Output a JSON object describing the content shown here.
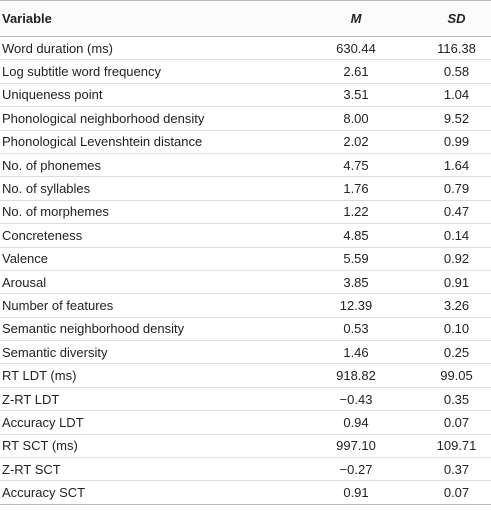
{
  "table": {
    "columns": [
      "Variable",
      "M",
      "SD"
    ],
    "rows": [
      [
        "Word duration (ms)",
        "630.44",
        "116.38"
      ],
      [
        "Log subtitle word frequency",
        "2.61",
        "0.58"
      ],
      [
        "Uniqueness point",
        "3.51",
        "1.04"
      ],
      [
        "Phonological neighborhood density",
        "8.00",
        "9.52"
      ],
      [
        "Phonological Levenshtein distance",
        "2.02",
        "0.99"
      ],
      [
        "No. of phonemes",
        "4.75",
        "1.64"
      ],
      [
        "No. of syllables",
        "1.76",
        "0.79"
      ],
      [
        "No. of morphemes",
        "1.22",
        "0.47"
      ],
      [
        "Concreteness",
        "4.85",
        "0.14"
      ],
      [
        "Valence",
        "5.59",
        "0.92"
      ],
      [
        "Arousal",
        "3.85",
        "0.91"
      ],
      [
        "Number of features",
        "12.39",
        "3.26"
      ],
      [
        "Semantic neighborhood density",
        "0.53",
        "0.10"
      ],
      [
        "Semantic diversity",
        "1.46",
        "0.25"
      ],
      [
        "RT LDT (ms)",
        "918.82",
        "99.05"
      ],
      [
        "Z-RT LDT",
        "−0.43",
        "0.35"
      ],
      [
        "Accuracy LDT",
        "0.94",
        "0.07"
      ],
      [
        "RT SCT (ms)",
        "997.10",
        "109.71"
      ],
      [
        "Z-RT SCT",
        "−0.27",
        "0.37"
      ],
      [
        "Accuracy SCT",
        "0.91",
        "0.07"
      ]
    ]
  }
}
